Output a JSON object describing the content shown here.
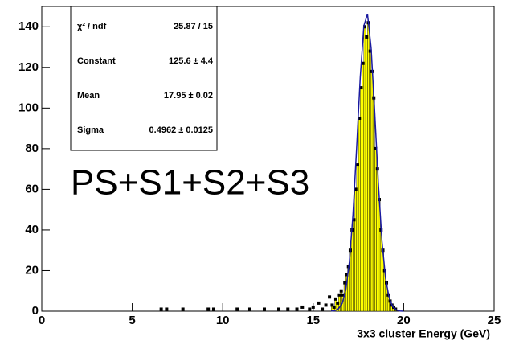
{
  "chart_data": {
    "type": "histogram",
    "x_label": "3x3 cluster Energy (GeV)",
    "annotation": "PS+S1+S2+S3",
    "xlim": [
      0,
      25
    ],
    "xticks": [
      0,
      5,
      10,
      15,
      20,
      25
    ],
    "ylim": [
      0,
      150
    ],
    "yticks": [
      0,
      20,
      40,
      60,
      80,
      100,
      120,
      140
    ],
    "color": "#ffff00",
    "bins": [
      16.0,
      16.1,
      16.2,
      16.3,
      16.4,
      16.5,
      16.6,
      16.7,
      16.8,
      16.9,
      17.0,
      17.1,
      17.2,
      17.3,
      17.4,
      17.5,
      17.6,
      17.7,
      17.8,
      17.9,
      18.0,
      18.1,
      18.2,
      18.3,
      18.4,
      18.5,
      18.6,
      18.7,
      18.8,
      18.9,
      19.0,
      19.1,
      19.2,
      19.3,
      19.4,
      19.5,
      19.6
    ],
    "values": [
      3,
      2,
      6,
      4,
      8,
      10,
      8,
      14,
      18,
      22,
      30,
      40,
      45,
      60,
      72,
      95,
      110,
      122,
      140,
      135,
      142,
      128,
      118,
      105,
      80,
      70,
      55,
      40,
      30,
      20,
      14,
      8,
      5,
      3,
      2,
      1
    ],
    "points": {
      "x": [
        6.6,
        6.9,
        7.8,
        9.2,
        9.5,
        10.8,
        11.5,
        12.3,
        13.1,
        13.6,
        14.1,
        14.4,
        14.8,
        15.0,
        15.3,
        15.5,
        15.7,
        15.9
      ],
      "y": [
        1,
        1,
        1,
        1,
        1,
        1,
        1,
        1,
        1,
        1,
        1,
        2,
        1,
        2,
        4,
        1,
        3,
        7
      ]
    },
    "fit": {
      "color": "#1a1aa0",
      "x": [
        16.0,
        16.2,
        16.4,
        16.6,
        16.8,
        17.0,
        17.2,
        17.4,
        17.6,
        17.8,
        18.0,
        18.2,
        18.4,
        18.6,
        18.8,
        19.0,
        19.2,
        19.4,
        19.6,
        19.8,
        20.0
      ],
      "y": [
        0.1,
        0.3,
        1.2,
        3.8,
        10.4,
        24.2,
        47.7,
        80.3,
        115.1,
        140.5,
        146.3,
        129.7,
        98.0,
        63.1,
        34.6,
        16.2,
        6.5,
        2.2,
        0.6,
        0.1,
        0.0
      ]
    },
    "stats": [
      [
        "χ² / ndf",
        "25.87 / 15"
      ],
      [
        "Constant",
        "125.6 ± 4.4"
      ],
      [
        "Mean",
        "17.95 ± 0.02"
      ],
      [
        "Sigma",
        "0.4962 ± 0.0125"
      ]
    ]
  }
}
